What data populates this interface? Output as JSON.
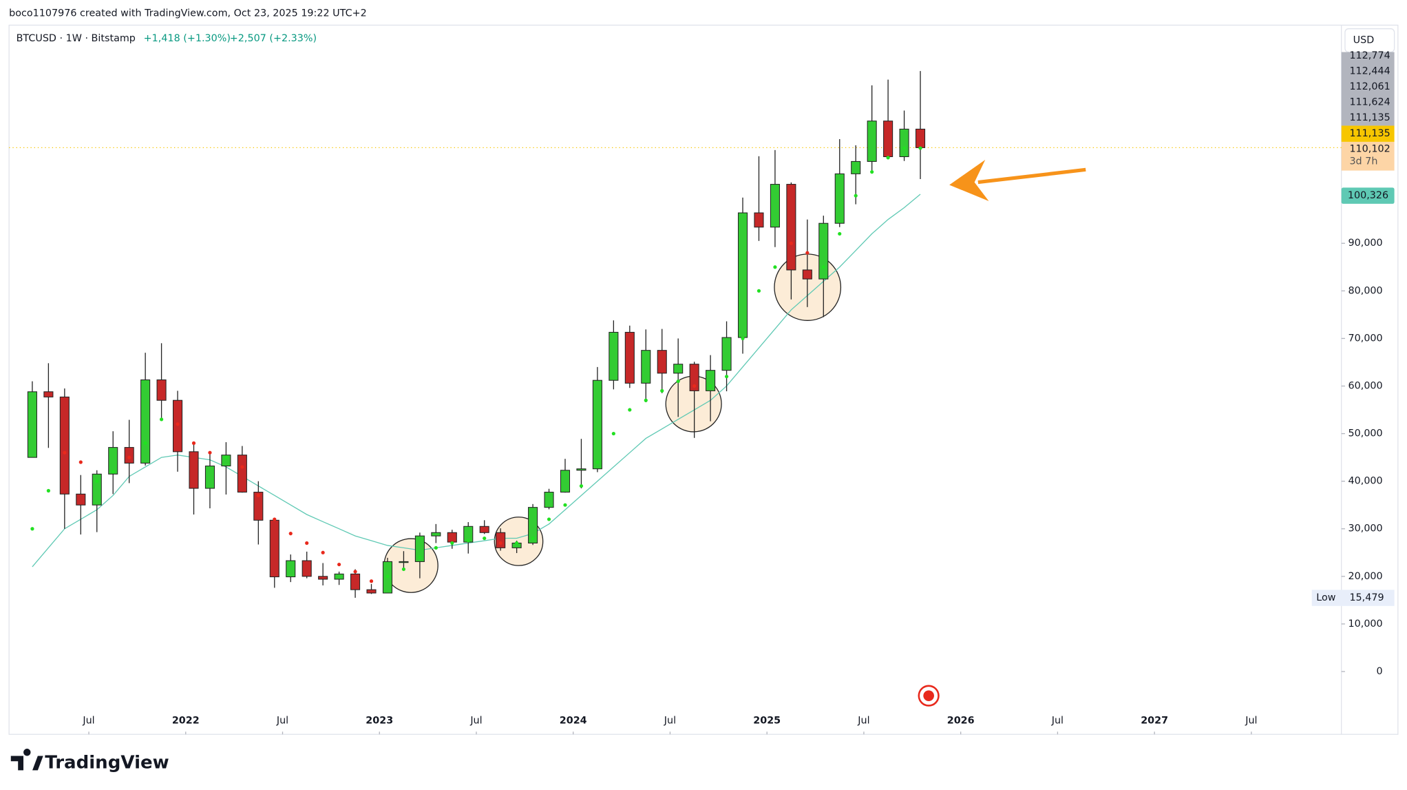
{
  "header": {
    "credit": "boco1107976 created with TradingView.com, Oct 23, 2025 19:22 UTC+2"
  },
  "footer": {
    "brand": "TradingView"
  },
  "chart_data": {
    "type": "candlestick",
    "symbol": "BTCUSD · 1W · Bitstamp",
    "change_1": "+1,418 (+1.30%)",
    "change_2": "+2,507 (+2.33%)",
    "currency": "USD",
    "x": [
      2.5,
      3.5,
      4.5,
      5.5,
      6.5,
      7.5,
      8.5,
      9.5,
      10.5,
      11.5,
      12.5,
      13.5,
      14.5,
      15.5,
      16.5,
      17.5,
      18.5,
      19.5,
      20.5,
      21.5,
      22.5,
      23.5,
      24.5,
      25.5,
      26.5,
      27.5,
      28.5,
      29.5,
      30.5,
      31.5,
      32.5,
      33.5,
      34.5,
      35.5,
      36.5,
      37.5,
      38.5,
      39.5,
      40.5,
      41.5,
      42.5,
      43.5,
      44.5,
      45.5,
      46.5,
      47.5,
      48.5,
      49.5,
      50.5,
      51.5,
      52.5,
      53.5,
      54.5,
      55.5,
      56.5,
      57.5
    ],
    "open": [
      45000,
      58800,
      57700,
      37300,
      35000,
      41500,
      47100,
      43800,
      61300,
      57000,
      46200,
      38500,
      43200,
      45500,
      37700,
      31800,
      19900,
      23300,
      20000,
      19400,
      20500,
      17200,
      16500,
      23100,
      23100,
      28500,
      29200,
      27200,
      30500,
      29200,
      26000,
      27000,
      34500,
      37700,
      42300,
      42600,
      61200,
      71300,
      60600,
      67500,
      62700,
      64600,
      59000,
      63300,
      70200,
      96400,
      93400,
      102400,
      84400,
      82500,
      94200,
      104600,
      107200,
      115700,
      108200,
      114000
    ],
    "high": [
      61000,
      64800,
      59500,
      41300,
      42300,
      50500,
      52900,
      67000,
      69000,
      59000,
      48000,
      45800,
      48200,
      47400,
      40000,
      31900,
      24600,
      25200,
      22800,
      21000,
      21500,
      18400,
      23900,
      25300,
      29200,
      31000,
      29800,
      31400,
      31800,
      30100,
      27500,
      35200,
      38400,
      44700,
      48900,
      64000,
      73800,
      72700,
      71900,
      72000,
      70000,
      65100,
      66500,
      73600,
      99600,
      108300,
      109600,
      102800,
      95000,
      95800,
      111900,
      110600,
      123200,
      124400,
      117900,
      126200
    ],
    "low": [
      45000,
      47000,
      30000,
      28800,
      29300,
      37300,
      39600,
      43300,
      53300,
      42000,
      33000,
      34300,
      37200,
      37600,
      26700,
      17600,
      18800,
      19600,
      18100,
      18200,
      15500,
      16300,
      16500,
      21400,
      19600,
      27000,
      25800,
      24800,
      28900,
      25400,
      24900,
      26600,
      34100,
      37600,
      38500,
      41900,
      59300,
      59600,
      56600,
      58500,
      53500,
      49100,
      52600,
      58900,
      66800,
      90500,
      89200,
      78200,
      76600,
      74500,
      93400,
      98200,
      105300,
      108000,
      107300,
      103500
    ],
    "close": [
      58800,
      57700,
      37300,
      35000,
      41500,
      47100,
      43800,
      61300,
      57000,
      46200,
      38500,
      43200,
      45500,
      37700,
      31800,
      19900,
      23300,
      20000,
      19400,
      20500,
      17200,
      16500,
      23100,
      23100,
      28500,
      29200,
      27200,
      30500,
      29200,
      26000,
      27000,
      34500,
      37700,
      42300,
      42600,
      61200,
      71300,
      60600,
      67500,
      62700,
      64600,
      59000,
      63300,
      70200,
      96400,
      93400,
      102400,
      84400,
      82500,
      94200,
      104600,
      107200,
      115700,
      108200,
      114000,
      110100
    ],
    "ma": {
      "color": "#5fc9b4",
      "values": [
        22000,
        26000,
        30000,
        32000,
        34000,
        37000,
        41000,
        43000,
        45000,
        45500,
        45000,
        44500,
        43000,
        41000,
        39000,
        37000,
        35000,
        33000,
        31500,
        30000,
        28500,
        27500,
        26500,
        26000,
        25500,
        26000,
        26500,
        27000,
        27500,
        28000,
        28000,
        29000,
        31000,
        34000,
        37000,
        40000,
        43000,
        46000,
        49000,
        51000,
        53000,
        55000,
        57000,
        60000,
        64000,
        68000,
        72000,
        76000,
        79000,
        82000,
        85000,
        88500,
        92000,
        95000,
        97500,
        100300
      ]
    },
    "trend": {
      "up_color": "#22e022",
      "down_color": "#e8291c",
      "values": [
        30000,
        38000,
        46000,
        44000,
        40000,
        42000,
        45000,
        48000,
        53000,
        52000,
        48000,
        46000,
        45000,
        43000,
        37000,
        32000,
        29000,
        27000,
        25000,
        22500,
        21000,
        19000,
        20000,
        21500,
        24000,
        26000,
        27000,
        27500,
        28000,
        27000,
        27000,
        28000,
        32000,
        35000,
        39000,
        44000,
        50000,
        55000,
        57000,
        59000,
        61000,
        60000,
        60000,
        62000,
        70000,
        80000,
        85000,
        90000,
        88000,
        85000,
        92000,
        100000,
        105000,
        108000,
        110000,
        110000
      ]
    },
    "up_color": "#33cc33",
    "down_color": "#c62828",
    "xlim": [
      1.06,
      83.3
    ],
    "xticks": [
      {
        "value": 6,
        "label": "Jul"
      },
      {
        "value": 12,
        "label": "2022"
      },
      {
        "value": 18,
        "label": "Jul"
      },
      {
        "value": 24,
        "label": "2023"
      },
      {
        "value": 30,
        "label": "Jul"
      },
      {
        "value": 36,
        "label": "2024"
      },
      {
        "value": 42,
        "label": "Jul"
      },
      {
        "value": 48,
        "label": "2025"
      },
      {
        "value": 54,
        "label": "Jul"
      },
      {
        "value": 60,
        "label": "2026"
      },
      {
        "value": 66,
        "label": "Jul"
      },
      {
        "value": 72,
        "label": "2027"
      },
      {
        "value": 78,
        "label": "Jul"
      }
    ],
    "ylim": [
      -13200,
      135850
    ],
    "yticks": [
      0,
      {
        "value": 10000,
        "label": "10,000"
      },
      {
        "value": 20000,
        "label": "20,000"
      },
      {
        "value": 30000,
        "label": "30,000"
      },
      {
        "value": 40000,
        "label": "40,000"
      },
      {
        "value": 50000,
        "label": "50,000"
      },
      {
        "value": 60000,
        "label": "60,000"
      },
      {
        "value": 70000,
        "label": "70,000"
      },
      {
        "value": 80000,
        "label": "80,000"
      },
      {
        "value": 90000,
        "label": "90,000"
      }
    ],
    "scale_tags": [
      "112,774",
      "112,444",
      "112,061",
      "111,624",
      "111,135"
    ],
    "last_price": "111,135",
    "close_tag": "110,102",
    "countdown": "3d 7h",
    "ma_tag": "100,326",
    "low_label": "Low",
    "low_value": "15,479"
  }
}
